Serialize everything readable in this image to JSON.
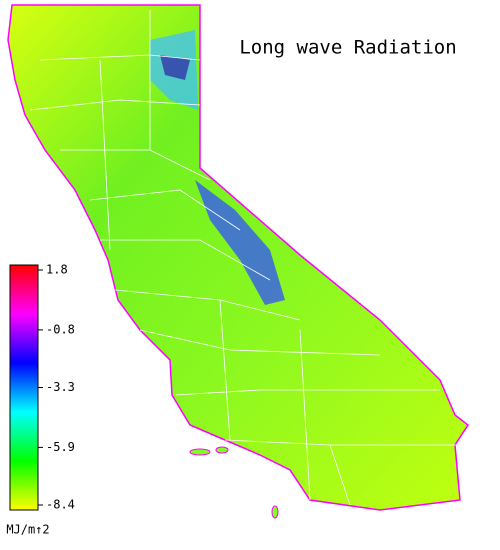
{
  "title": "Long wave Radiation",
  "legend": {
    "range": [
      -8.4,
      1.8
    ],
    "ticks": [
      1.8,
      -0.8,
      -3.3,
      -5.9,
      -8.4
    ],
    "unit": "MJ/m↑2",
    "colormap": [
      "#ffff00",
      "#00ff00",
      "#00ffff",
      "#0000ff",
      "#ff00ff",
      "#ff0000"
    ]
  }
}
